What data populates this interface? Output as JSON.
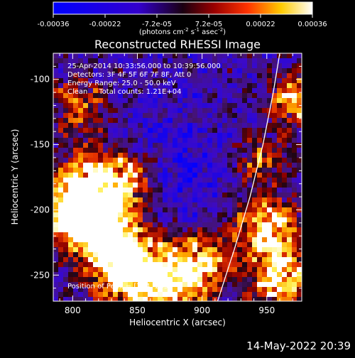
{
  "chart_data": {
    "type": "heatmap",
    "title": "Reconstructed RHESSI Image",
    "xlabel": "Heliocentric X (arcsec)",
    "ylabel": "Heliocentric Y (arcsec)",
    "xlim": [
      785,
      977
    ],
    "ylim": [
      -270,
      -80
    ],
    "xticks": [
      800,
      850,
      900,
      950
    ],
    "yticks": [
      -100,
      -150,
      -200,
      -250
    ],
    "colorbar": {
      "range": [
        -0.00036,
        0.00036
      ],
      "ticks": [
        "-0.00036",
        "-0.00022",
        "-7.2e-05",
        "7.2e-05",
        "0.00022",
        "0.00036"
      ],
      "label_main": "(photons cm",
      "sup1": "-2",
      "label_mid": " s",
      "sup2": "-1",
      "label_end": " asec",
      "sup3": "-2",
      "label_close": ")"
    },
    "annotations": [
      "25-Apr-2014 10:33:56.000 to 10:39:56.000",
      "Detectors: 3F 4F 5F 6F 7F 8F, Att 0",
      "Energy Range: 25.0 - 50.0 keV",
      "Clean     Total counts: 1.21E+04"
    ],
    "peak_label": "Position of Peak = [794,-255]",
    "limb_curve": [
      [
        912,
        -270
      ],
      [
        925,
        -230
      ],
      [
        937,
        -190
      ],
      [
        947,
        -150
      ],
      [
        955,
        -110
      ],
      [
        960,
        -80
      ]
    ],
    "bright_regions": [
      {
        "x": 815,
        "y": -185,
        "intensity": 1.0,
        "spread": 28
      },
      {
        "x": 800,
        "y": -205,
        "intensity": 0.9,
        "spread": 22
      },
      {
        "x": 830,
        "y": -220,
        "intensity": 0.7,
        "spread": 25
      },
      {
        "x": 845,
        "y": -175,
        "intensity": 0.55,
        "spread": 22
      },
      {
        "x": 870,
        "y": -255,
        "intensity": 0.95,
        "spread": 30
      },
      {
        "x": 835,
        "y": -245,
        "intensity": 0.7,
        "spread": 25
      },
      {
        "x": 900,
        "y": -240,
        "intensity": 0.6,
        "spread": 22
      },
      {
        "x": 950,
        "y": -215,
        "intensity": 0.9,
        "spread": 25
      },
      {
        "x": 960,
        "y": -255,
        "intensity": 0.85,
        "spread": 22
      },
      {
        "x": 970,
        "y": -115,
        "intensity": 0.75,
        "spread": 18
      },
      {
        "x": 805,
        "y": -120,
        "intensity": 0.55,
        "spread": 20
      },
      {
        "x": 945,
        "y": -160,
        "intensity": 0.45,
        "spread": 20
      }
    ]
  },
  "footer": {
    "date": "14-May-2022 20:39"
  }
}
